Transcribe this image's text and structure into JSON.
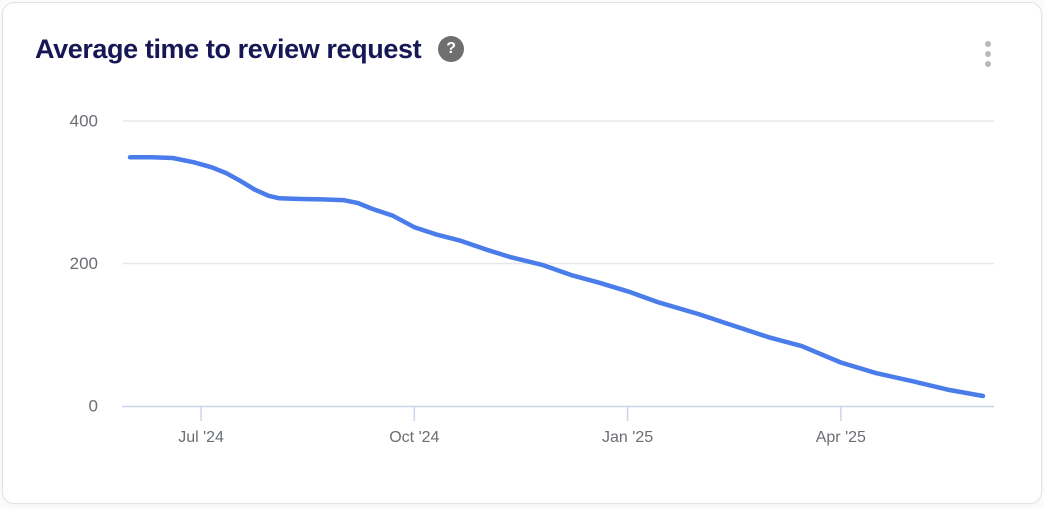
{
  "card": {
    "title": "Average time to review request",
    "help_glyph": "?",
    "help_icon": "question-mark-icon",
    "menu_icon": "kebab-vertical-icon"
  },
  "chart_data": {
    "type": "line",
    "title": "Average time to review request",
    "xlabel": "",
    "ylabel": "",
    "legend": "none",
    "grid": "horizontal-only",
    "ylim": [
      0,
      400
    ],
    "y_ticks": [
      0,
      200,
      400
    ],
    "x_tick_labels": [
      "Jul '24",
      "Oct '24",
      "Jan '25",
      "Apr '25"
    ],
    "x_tick_month_index": [
      1,
      4,
      7,
      10
    ],
    "categories": [
      "Jun '24",
      "Jul '24",
      "Aug '24",
      "Sep '24",
      "Oct '24",
      "Nov '24",
      "Dec '24",
      "Jan '25",
      "Feb '25",
      "Mar '25",
      "Apr '25",
      "May '25",
      "Jun '25"
    ],
    "values": [
      349,
      341,
      292,
      289,
      251,
      220,
      190,
      161,
      129,
      96,
      61,
      36,
      14
    ],
    "curve_samples": [
      [
        0,
        349
      ],
      [
        0.3,
        349
      ],
      [
        0.6,
        348
      ],
      [
        0.9,
        342
      ],
      [
        1.15,
        335
      ],
      [
        1.35,
        327
      ],
      [
        1.55,
        316
      ],
      [
        1.75,
        304
      ],
      [
        1.95,
        295
      ],
      [
        2.1,
        291.5
      ],
      [
        2.4,
        290.5
      ],
      [
        2.7,
        290
      ],
      [
        3.0,
        289
      ],
      [
        3.2,
        285
      ],
      [
        3.4,
        277
      ],
      [
        3.7,
        267
      ],
      [
        4.0,
        251
      ],
      [
        4.3,
        241
      ],
      [
        4.65,
        232
      ],
      [
        5.0,
        220
      ],
      [
        5.35,
        209
      ],
      [
        5.8,
        198
      ],
      [
        6.2,
        184
      ],
      [
        6.6,
        173
      ],
      [
        7.0,
        161
      ],
      [
        7.45,
        145
      ],
      [
        8.0,
        129
      ],
      [
        8.45,
        114
      ],
      [
        9.0,
        96
      ],
      [
        9.45,
        84
      ],
      [
        10.0,
        61
      ],
      [
        10.5,
        46
      ],
      [
        11.0,
        35
      ],
      [
        11.5,
        23
      ],
      [
        12.0,
        14
      ]
    ],
    "colors": {
      "line": "#4a7cea",
      "grid": "#e7e7e9",
      "axis": "#ccd6eb",
      "tick_label": "#6a6e73",
      "title": "#171756"
    }
  }
}
